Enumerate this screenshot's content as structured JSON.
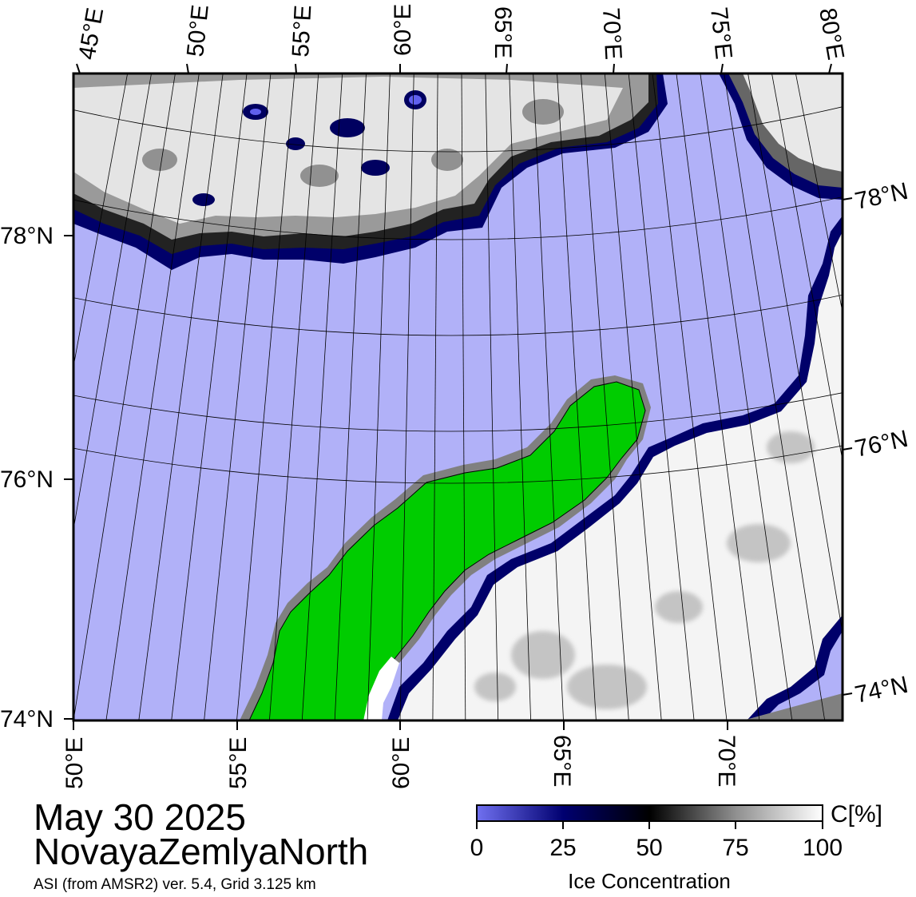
{
  "map": {
    "top_lon_labels": [
      "45°E",
      "50°E",
      "55°E",
      "60°E",
      "65°E",
      "70°E",
      "75°E",
      "80°E"
    ],
    "bottom_lon_labels": [
      "50°E",
      "55°E",
      "60°E",
      "65°E",
      "70°E"
    ],
    "left_lat_labels": [
      "78°N",
      "76°N",
      "74°N"
    ],
    "right_lat_labels": [
      "78°N",
      "76°N",
      "74°N"
    ]
  },
  "title": {
    "date": "May 30 2025",
    "region": "NovayaZemlyaNorth",
    "source": "ASI (from AMSR2) ver. 5.4,  Grid 3.125 km"
  },
  "colorbar": {
    "unit": "C[%]",
    "title": "Ice Concentration",
    "ticks": [
      "0",
      "25",
      "50",
      "75",
      "100"
    ]
  },
  "colors": {
    "open_water": "#b1b1f8",
    "land": "#00cc00",
    "coast": "#808080",
    "ice_high": "#ffffff",
    "ice_mid": "#000000",
    "ice_low": "#000060",
    "ice_min": "#6060ee"
  }
}
